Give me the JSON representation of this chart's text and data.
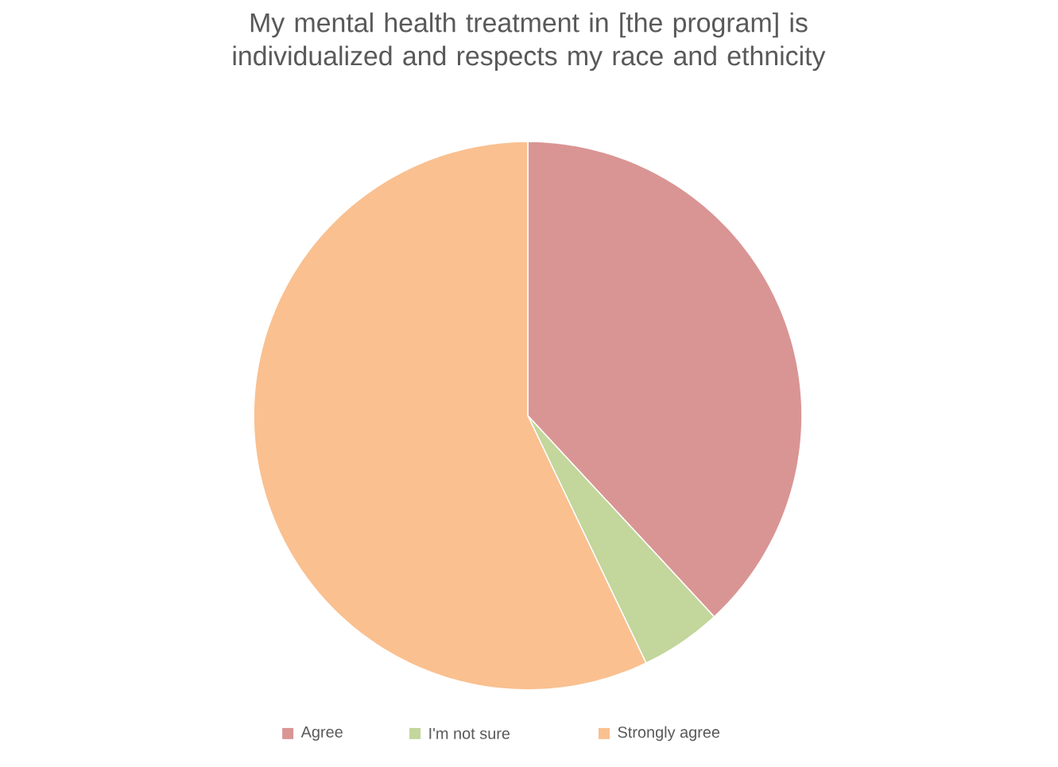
{
  "chart_data": {
    "type": "pie",
    "title": "My mental health treatment in [the program] is individualized and respects my race and ethnicity",
    "categories": [
      "Agree",
      "I'm not sure",
      "Strongly agree"
    ],
    "values": [
      38.1,
      4.8,
      57.1
    ],
    "colors": [
      "#d99594",
      "#c3d69b",
      "#fac090"
    ],
    "legend": "bottom"
  }
}
